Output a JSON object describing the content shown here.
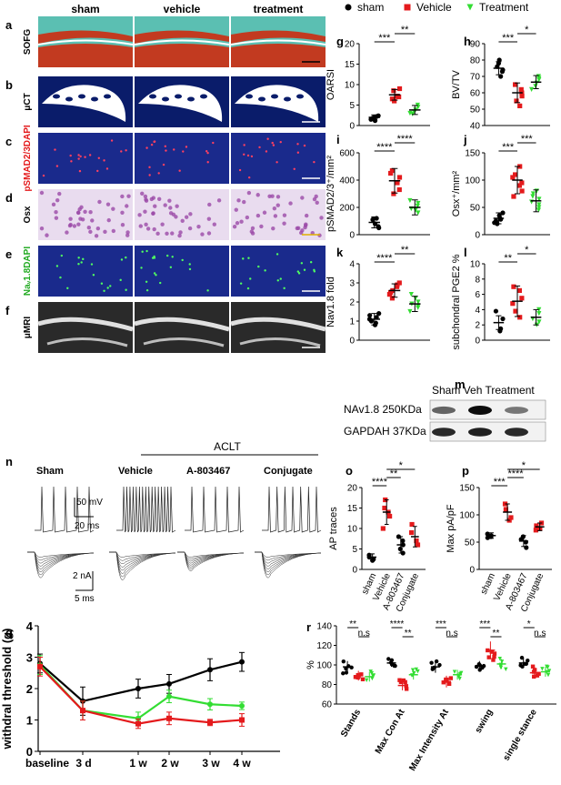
{
  "colors": {
    "sham": "#000000",
    "vehicle": "#e41a1c",
    "treatment": "#33dd33",
    "tissue_green": "#5bbfb2",
    "tissue_red": "#c23a20",
    "ct_blue": "#0a1c6a",
    "if_blue": "#1a2a8c",
    "osx_purple": "#9b4aa8",
    "mri_gray": "#2a2a2a"
  },
  "legend": {
    "items": [
      "sham",
      "Vehicle",
      "Treatment"
    ]
  },
  "histology": {
    "columns": [
      "sham",
      "vehicle",
      "treatment"
    ],
    "rows": [
      {
        "letter": "a",
        "label": "SOFG",
        "type": "sofg"
      },
      {
        "letter": "b",
        "label": "μCT",
        "type": "ct"
      },
      {
        "letter": "c",
        "label": "pSMAD2/3DAPI",
        "type": "if_red"
      },
      {
        "letter": "d",
        "label": "Osx",
        "type": "osx"
      },
      {
        "letter": "e",
        "label": "Naᵥ1.8DAPI",
        "type": "if_green"
      },
      {
        "letter": "f",
        "label": "μMRI",
        "type": "mri"
      }
    ]
  },
  "panel_m": {
    "letter": "m",
    "header": "Sham  Veh Treatment",
    "bands": [
      {
        "label": "NAv1.8 250KDa",
        "intensity": [
          0.55,
          1.0,
          0.45
        ]
      },
      {
        "label": "GAPDAH 37KDa",
        "intensity": [
          0.85,
          0.9,
          0.85
        ]
      }
    ]
  },
  "ephys": {
    "letter": "n",
    "aclt_label": "ACLT",
    "groups": [
      "Sham",
      "Vehicle",
      "A-803467",
      "Conjugate"
    ],
    "spike_counts": [
      5,
      16,
      5,
      7
    ],
    "scale_mv": "50 mV",
    "scale_ms_top": "20 ms",
    "scale_na": "2 nA",
    "scale_ms_bottom": "5 ms"
  },
  "chart_data": [
    {
      "panel": "g",
      "type": "scatter",
      "ylabel": "OARSI",
      "ylim": [
        0,
        20
      ],
      "yticks": [
        0,
        5,
        10,
        15,
        20
      ],
      "categories": [
        "sham",
        "Vehicle",
        "Treatment"
      ],
      "means": [
        2,
        7.5,
        3.8
      ],
      "sd": [
        0.6,
        1.3,
        1.1
      ],
      "points": [
        [
          1.5,
          2,
          2.4,
          1.8,
          1.2,
          2.2
        ],
        [
          6,
          7,
          8.5,
          9,
          6.5,
          7.2
        ],
        [
          2.8,
          3.4,
          4.5,
          5,
          3,
          3.8
        ]
      ],
      "sig": [
        {
          "a": 0,
          "b": 1,
          "label": "***",
          "lvl": 0
        },
        {
          "a": 1,
          "b": 2,
          "label": "**",
          "lvl": 1
        }
      ]
    },
    {
      "panel": "h",
      "type": "scatter",
      "ylabel": "BV/TV",
      "ylim": [
        40,
        90
      ],
      "yticks": [
        40,
        50,
        60,
        70,
        80,
        90
      ],
      "categories": [
        "sham",
        "Vehicle",
        "Treatment"
      ],
      "means": [
        75,
        60,
        66.5
      ],
      "sd": [
        4,
        6,
        4
      ],
      "points": [
        [
          78,
          73,
          76,
          80,
          70,
          74
        ],
        [
          62,
          55,
          58,
          65,
          52,
          60
        ],
        [
          64,
          68,
          70,
          62,
          66,
          69
        ]
      ],
      "sig": [
        {
          "a": 0,
          "b": 1,
          "label": "***",
          "lvl": 0
        },
        {
          "a": 1,
          "b": 2,
          "label": "*",
          "lvl": 1
        }
      ]
    },
    {
      "panel": "i",
      "type": "scatter",
      "ylabel": "pSMAD2/3⁺/mm²",
      "ylim": [
        0,
        600
      ],
      "yticks": [
        0,
        200,
        400,
        600
      ],
      "categories": [
        "sham",
        "Vehicle",
        "Treatment"
      ],
      "means": [
        90,
        395,
        200
      ],
      "sd": [
        40,
        90,
        55
      ],
      "points": [
        [
          60,
          110,
          80,
          120,
          50
        ],
        [
          300,
          420,
          470,
          380,
          330,
          450
        ],
        [
          160,
          210,
          250,
          180,
          230,
          190
        ]
      ],
      "sig": [
        {
          "a": 0,
          "b": 1,
          "label": "****",
          "lvl": 0
        },
        {
          "a": 1,
          "b": 2,
          "label": "****",
          "lvl": 1
        }
      ]
    },
    {
      "panel": "j",
      "type": "scatter",
      "ylabel": "Osx⁺/mm²",
      "ylim": [
        0,
        150
      ],
      "yticks": [
        0,
        50,
        100,
        150
      ],
      "categories": [
        "sham",
        "Vehicle",
        "Treatment"
      ],
      "means": [
        30,
        100,
        62
      ],
      "sd": [
        10,
        25,
        20
      ],
      "points": [
        [
          20,
          35,
          28,
          40,
          25,
          30,
          22
        ],
        [
          80,
          110,
          125,
          95,
          70,
          105,
          90
        ],
        [
          45,
          60,
          80,
          55,
          70,
          50,
          65,
          75
        ]
      ],
      "sig": [
        {
          "a": 0,
          "b": 1,
          "label": "***",
          "lvl": 0
        },
        {
          "a": 1,
          "b": 2,
          "label": "***",
          "lvl": 1
        }
      ]
    },
    {
      "panel": "k",
      "type": "scatter",
      "ylabel": "Nav1.8 fold",
      "ylim": [
        0,
        4
      ],
      "yticks": [
        0,
        1,
        2,
        3,
        4
      ],
      "categories": [
        "sham",
        "Vehicle",
        "Treatment"
      ],
      "means": [
        1.1,
        2.6,
        1.9
      ],
      "sd": [
        0.3,
        0.35,
        0.4
      ],
      "points": [
        [
          0.8,
          1.2,
          1.4,
          1,
          0.9,
          1.3,
          1.1
        ],
        [
          2.2,
          2.9,
          3,
          2.5,
          2.4,
          2.8,
          2.6
        ],
        [
          1.5,
          2.2,
          1.8,
          2.4,
          1.7,
          2,
          1.9
        ]
      ],
      "sig": [
        {
          "a": 0,
          "b": 1,
          "label": "****",
          "lvl": 0
        },
        {
          "a": 1,
          "b": 2,
          "label": "**",
          "lvl": 1
        }
      ]
    },
    {
      "panel": "l",
      "type": "scatter",
      "ylabel": "subchondral PGE2 %",
      "ylim": [
        0,
        10
      ],
      "yticks": [
        0,
        2,
        4,
        6,
        8,
        10
      ],
      "categories": [
        "sham",
        "Vehicle",
        "Treatment"
      ],
      "means": [
        2.3,
        5.1,
        3
      ],
      "sd": [
        0.9,
        2,
        1
      ],
      "points": [
        [
          1.5,
          2.8,
          3.8,
          1.2
        ],
        [
          3,
          5.5,
          7,
          4.8,
          6.5,
          3.8
        ],
        [
          2,
          3.5,
          2.8,
          4,
          2.4
        ]
      ],
      "sig": [
        {
          "a": 0,
          "b": 1,
          "label": "**",
          "lvl": 0
        },
        {
          "a": 1,
          "b": 2,
          "label": "*",
          "lvl": 1
        }
      ]
    },
    {
      "panel": "o",
      "type": "scatter",
      "ylabel": "AP traces",
      "ylim": [
        0,
        20
      ],
      "yticks": [
        0,
        5,
        10,
        15,
        20
      ],
      "categories": [
        "sham",
        "Vehicle",
        "A-803467",
        "Conjugate"
      ],
      "means": [
        3,
        14,
        6,
        8
      ],
      "sd": [
        0.8,
        3,
        2,
        2.5
      ],
      "points": [
        [
          2.5,
          3,
          3.5,
          2.2
        ],
        [
          10,
          14,
          17,
          15,
          13
        ],
        [
          4,
          6,
          8,
          5,
          7
        ],
        [
          6,
          9,
          11,
          7
        ]
      ],
      "sig": [
        {
          "a": 0,
          "b": 1,
          "label": "****",
          "lvl": 0
        },
        {
          "a": 1,
          "b": 2,
          "label": "**",
          "lvl": 1
        },
        {
          "a": 1,
          "b": 3,
          "label": "*",
          "lvl": 2
        }
      ]
    },
    {
      "panel": "p",
      "type": "scatter",
      "ylabel": "Max pA/pF",
      "ylim": [
        0,
        150
      ],
      "yticks": [
        0,
        50,
        100,
        150
      ],
      "categories": [
        "sham",
        "Vehicle",
        "A-803467",
        "Conjugate"
      ],
      "means": [
        62,
        105,
        52,
        78
      ],
      "sd": [
        5,
        15,
        10,
        7
      ],
      "points": [
        [
          58,
          65,
          62,
          60
        ],
        [
          90,
          110,
          120,
          95
        ],
        [
          40,
          55,
          60,
          50
        ],
        [
          72,
          80,
          85,
          75
        ]
      ],
      "sig": [
        {
          "a": 0,
          "b": 1,
          "label": "***",
          "lvl": 0
        },
        {
          "a": 1,
          "b": 2,
          "label": "****",
          "lvl": 1
        },
        {
          "a": 1,
          "b": 3,
          "label": "*",
          "lvl": 2
        }
      ]
    },
    {
      "panel": "q",
      "type": "line",
      "ylabel": "withdral threshold (g)",
      "ylim": [
        0,
        4
      ],
      "yticks": [
        0,
        1,
        2,
        3,
        4
      ],
      "categories": [
        "baseline",
        "3 d",
        "1 w",
        "2 w",
        "3 w",
        "4 w"
      ],
      "series": [
        {
          "name": "sham",
          "values": [
            2.8,
            1.6,
            2.0,
            2.15,
            2.6,
            2.85
          ],
          "err": [
            0.3,
            0.45,
            0.3,
            0.3,
            0.35,
            0.3
          ]
        },
        {
          "name": "Treatment",
          "values": [
            2.75,
            1.3,
            1.05,
            1.75,
            1.5,
            1.45
          ],
          "err": [
            0.3,
            0.3,
            0.2,
            0.2,
            0.18,
            0.12
          ]
        },
        {
          "name": "Vehicle",
          "values": [
            2.7,
            1.3,
            0.88,
            1.05,
            0.92,
            1.0
          ],
          "err": [
            0.3,
            0.3,
            0.15,
            0.2,
            0.1,
            0.2
          ]
        }
      ]
    },
    {
      "panel": "r",
      "type": "scatter",
      "ylabel": "%",
      "ylim": [
        60,
        140
      ],
      "yticks": [
        60,
        80,
        100,
        120,
        140
      ],
      "categories": [
        "Stands",
        "Max Con At",
        "Max Intensity At",
        "swing",
        "single stance"
      ],
      "groups": [
        "sham",
        "Vehicle",
        "Treatment"
      ],
      "means": [
        [
          98,
          89,
          88
        ],
        [
          102,
          79,
          90
        ],
        [
          98,
          83,
          90
        ],
        [
          99,
          115,
          101
        ],
        [
          102,
          92,
          93
        ]
      ],
      "sd": [
        [
          6,
          5,
          5
        ],
        [
          4,
          5,
          5
        ],
        [
          6,
          6,
          5
        ],
        [
          5,
          9,
          5
        ],
        [
          5,
          6,
          5
        ]
      ],
      "sig": [
        {
          "cat": 0,
          "a": 0,
          "b": 1,
          "label": "**"
        },
        {
          "cat": 0,
          "a": 1,
          "b": 2,
          "label": "n.s"
        },
        {
          "cat": 1,
          "a": 0,
          "b": 1,
          "label": "****"
        },
        {
          "cat": 1,
          "a": 1,
          "b": 2,
          "label": "**"
        },
        {
          "cat": 2,
          "a": 0,
          "b": 1,
          "label": "***"
        },
        {
          "cat": 2,
          "a": 1,
          "b": 2,
          "label": "n.s"
        },
        {
          "cat": 3,
          "a": 0,
          "b": 1,
          "label": "***"
        },
        {
          "cat": 3,
          "a": 1,
          "b": 2,
          "label": "**"
        },
        {
          "cat": 4,
          "a": 0,
          "b": 1,
          "label": "*"
        },
        {
          "cat": 4,
          "a": 1,
          "b": 2,
          "label": "n.s"
        }
      ]
    }
  ]
}
